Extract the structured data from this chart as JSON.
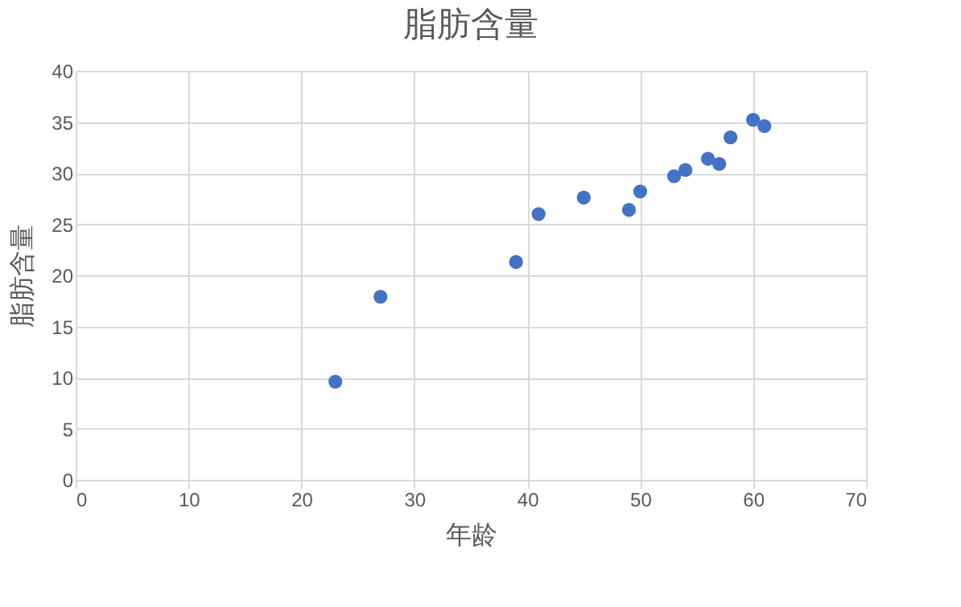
{
  "chart_data": {
    "type": "scatter",
    "title": "脂肪含量",
    "xlabel": "年龄",
    "ylabel": "脂肪含量",
    "x": [
      23,
      27,
      39,
      41,
      45,
      49,
      50,
      53,
      54,
      56,
      57,
      58,
      60,
      61
    ],
    "series": [
      {
        "color": "#4472c4",
        "values": [
          9.6,
          17.9,
          21.3,
          26.0,
          27.6,
          26.4,
          28.2,
          29.7,
          30.3,
          31.4,
          30.9,
          33.5,
          35.2,
          34.6
        ]
      }
    ],
    "xlim": [
      0,
      70
    ],
    "xticks": [
      0,
      10,
      20,
      30,
      40,
      50,
      60,
      70
    ],
    "ylim": [
      0,
      40
    ],
    "yticks": [
      0,
      5,
      10,
      15,
      20,
      25,
      30,
      35,
      40
    ],
    "grid": true,
    "marker": "circle"
  }
}
